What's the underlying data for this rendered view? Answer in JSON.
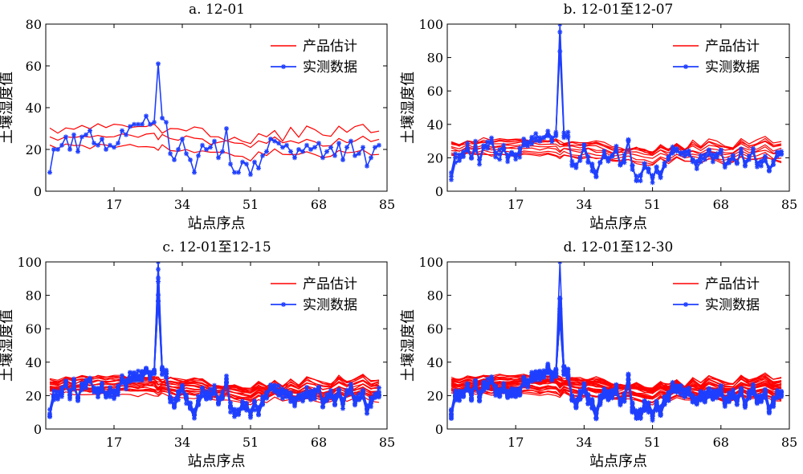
{
  "chart_data": [
    {
      "type": "line",
      "title": "a. 12-01",
      "xlabel": "站点序点",
      "ylabel": "土壤湿度值",
      "xlim": [
        0,
        85
      ],
      "ylim": [
        0,
        80
      ],
      "xticks": [
        17,
        34,
        51,
        68,
        85
      ],
      "yticks": [
        0,
        20,
        40,
        60,
        80
      ],
      "legend": {
        "position": "top-right",
        "entries": [
          "产品估计",
          "实测数据"
        ]
      },
      "colors": {
        "product": "#ff0000",
        "measured": "#1f3fff"
      },
      "product_days": 3,
      "measured_days": 1
    },
    {
      "type": "line",
      "title": "b. 12-01至12-07",
      "xlabel": "站点序点",
      "ylabel": "土壤湿度值",
      "xlim": [
        0,
        85
      ],
      "ylim": [
        0,
        100
      ],
      "xticks": [
        17,
        34,
        51,
        68,
        85
      ],
      "yticks": [
        0,
        20,
        40,
        60,
        80,
        100
      ],
      "legend": {
        "position": "top-right",
        "entries": [
          "产品估计",
          "实测数据"
        ]
      },
      "colors": {
        "product": "#ff0000",
        "measured": "#1f3fff"
      },
      "product_days": 10,
      "measured_days": 3
    },
    {
      "type": "line",
      "title": "c. 12-01至12-15",
      "xlabel": "站点序点",
      "ylabel": "土壤湿度值",
      "xlim": [
        0,
        85
      ],
      "ylim": [
        0,
        100
      ],
      "xticks": [
        17,
        34,
        51,
        68,
        85
      ],
      "yticks": [
        0,
        20,
        40,
        60,
        80,
        100
      ],
      "legend": {
        "position": "top-right",
        "entries": [
          "产品估计",
          "实测数据"
        ]
      },
      "colors": {
        "product": "#ff0000",
        "measured": "#1f3fff"
      },
      "product_days": 20,
      "measured_days": 7
    },
    {
      "type": "line",
      "title": "d. 12-01至12-30",
      "xlabel": "站点序点",
      "ylabel": "土壤湿度值",
      "xlim": [
        0,
        85
      ],
      "ylim": [
        0,
        100
      ],
      "xticks": [
        17,
        34,
        51,
        68,
        85
      ],
      "yticks": [
        0,
        20,
        40,
        60,
        80,
        100
      ],
      "legend": {
        "position": "top-right",
        "entries": [
          "产品估计",
          "实测数据"
        ]
      },
      "colors": {
        "product": "#ff0000",
        "measured": "#1f3fff"
      },
      "product_days": 30,
      "measured_days": 12
    }
  ],
  "measured_series": {
    "x": [
      1,
      2,
      3,
      4,
      5,
      6,
      7,
      8,
      9,
      10,
      11,
      12,
      13,
      14,
      15,
      16,
      17,
      18,
      19,
      20,
      21,
      22,
      23,
      24,
      25,
      26,
      27,
      28,
      29,
      30,
      31,
      32,
      33,
      34,
      35,
      36,
      37,
      38,
      39,
      40,
      41,
      42,
      43,
      44,
      45,
      46,
      47,
      48,
      49,
      50,
      51,
      52,
      53,
      54,
      55,
      56,
      57,
      58,
      59,
      60,
      61,
      62,
      63,
      64,
      65,
      66,
      67,
      68,
      69,
      70,
      71,
      72,
      73,
      74,
      75,
      76,
      77,
      78,
      79,
      80,
      81,
      82,
      83
    ],
    "values": [
      9,
      20,
      20,
      22,
      26,
      20,
      27,
      19,
      26,
      27,
      29,
      23,
      22,
      25,
      20,
      22,
      21,
      23,
      29,
      27,
      31,
      32,
      32,
      32,
      36,
      32,
      33,
      61,
      35,
      33,
      18,
      15,
      20,
      25,
      18,
      15,
      9,
      17,
      22,
      20,
      21,
      24,
      16,
      19,
      30,
      13,
      9,
      9,
      14,
      13,
      8,
      14,
      11,
      17,
      19,
      25,
      24,
      23,
      21,
      22,
      19,
      16,
      20,
      19,
      22,
      20,
      21,
      23,
      16,
      19,
      21,
      17,
      23,
      15,
      21,
      24,
      17,
      18,
      21,
      12,
      16,
      21,
      22
    ]
  },
  "product_bands": {
    "x": [
      1,
      3,
      5,
      7,
      9,
      11,
      13,
      15,
      17,
      19,
      21,
      23,
      25,
      27,
      28,
      29,
      31,
      33,
      35,
      37,
      39,
      41,
      43,
      45,
      47,
      49,
      51,
      53,
      55,
      57,
      59,
      61,
      63,
      65,
      67,
      69,
      71,
      73,
      75,
      77,
      79,
      81,
      83
    ],
    "upper": [
      30,
      29,
      31,
      30,
      32,
      31,
      32,
      31,
      32,
      32,
      31,
      32,
      31,
      32,
      31,
      29,
      31,
      30,
      29,
      31,
      30,
      27,
      26,
      25,
      27,
      25,
      24,
      28,
      26,
      29,
      25,
      31,
      27,
      32,
      30,
      28,
      27,
      32,
      29,
      31,
      33,
      29,
      30
    ],
    "middle": [
      26,
      25,
      27,
      26,
      27,
      26,
      27,
      27,
      27,
      28,
      28,
      27,
      28,
      28,
      25,
      27,
      26,
      25,
      27,
      26,
      25,
      23,
      24,
      25,
      24,
      23,
      22,
      25,
      23,
      26,
      23,
      24,
      23,
      25,
      24,
      22,
      23,
      26,
      24,
      25,
      27,
      24,
      25
    ],
    "lower": [
      22,
      21,
      23,
      22,
      22,
      21,
      22,
      22,
      21,
      22,
      22,
      21,
      22,
      21,
      20,
      22,
      20,
      19,
      20,
      19,
      20,
      18,
      18,
      19,
      17,
      16,
      15,
      19,
      17,
      20,
      18,
      18,
      17,
      19,
      18,
      16,
      17,
      20,
      18,
      19,
      20,
      18,
      17
    ]
  }
}
